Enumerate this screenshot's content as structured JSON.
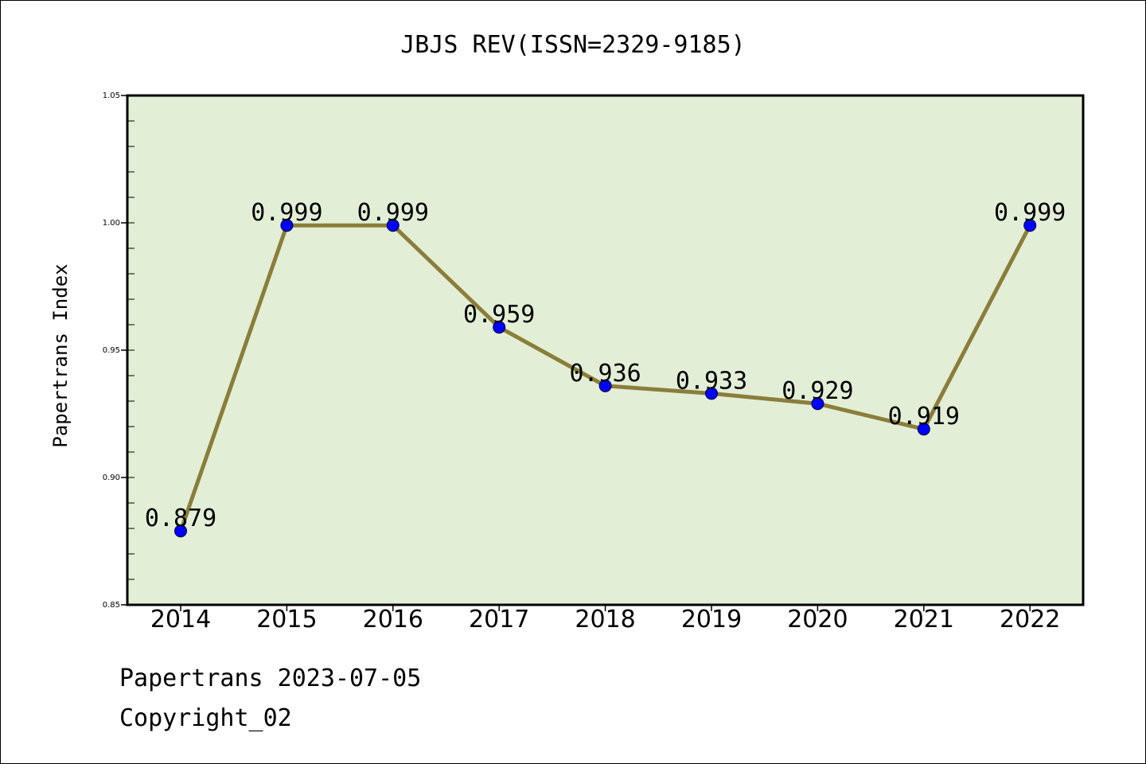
{
  "chart_data": {
    "type": "line",
    "title": "JBJS REV(ISSN=2329-9185)",
    "xlabel": "",
    "ylabel": "Papertrans Index",
    "categories": [
      "2014",
      "2015",
      "2016",
      "2017",
      "2018",
      "2019",
      "2020",
      "2021",
      "2022"
    ],
    "values": [
      0.879,
      0.999,
      0.999,
      0.959,
      0.936,
      0.933,
      0.929,
      0.919,
      0.999
    ],
    "data_labels": [
      "0.879",
      "0.999",
      "0.999",
      "0.959",
      "0.936",
      "0.933",
      "0.929",
      "0.919",
      "0.999"
    ],
    "ylim": [
      0.85,
      1.05
    ],
    "yticks": [
      0.85,
      0.9,
      0.95,
      1.0,
      1.05
    ],
    "ytick_labels": [
      "0.85",
      "0.90",
      "0.95",
      "1.00",
      "1.05"
    ],
    "grid": false,
    "legend": "none",
    "colors": {
      "plot_background": "#e2efd6",
      "line": "#8b7d3a",
      "marker": "#0000ff"
    }
  },
  "footer": {
    "line1": "Papertrans 2023-07-05",
    "line2": "Copyright_02"
  }
}
